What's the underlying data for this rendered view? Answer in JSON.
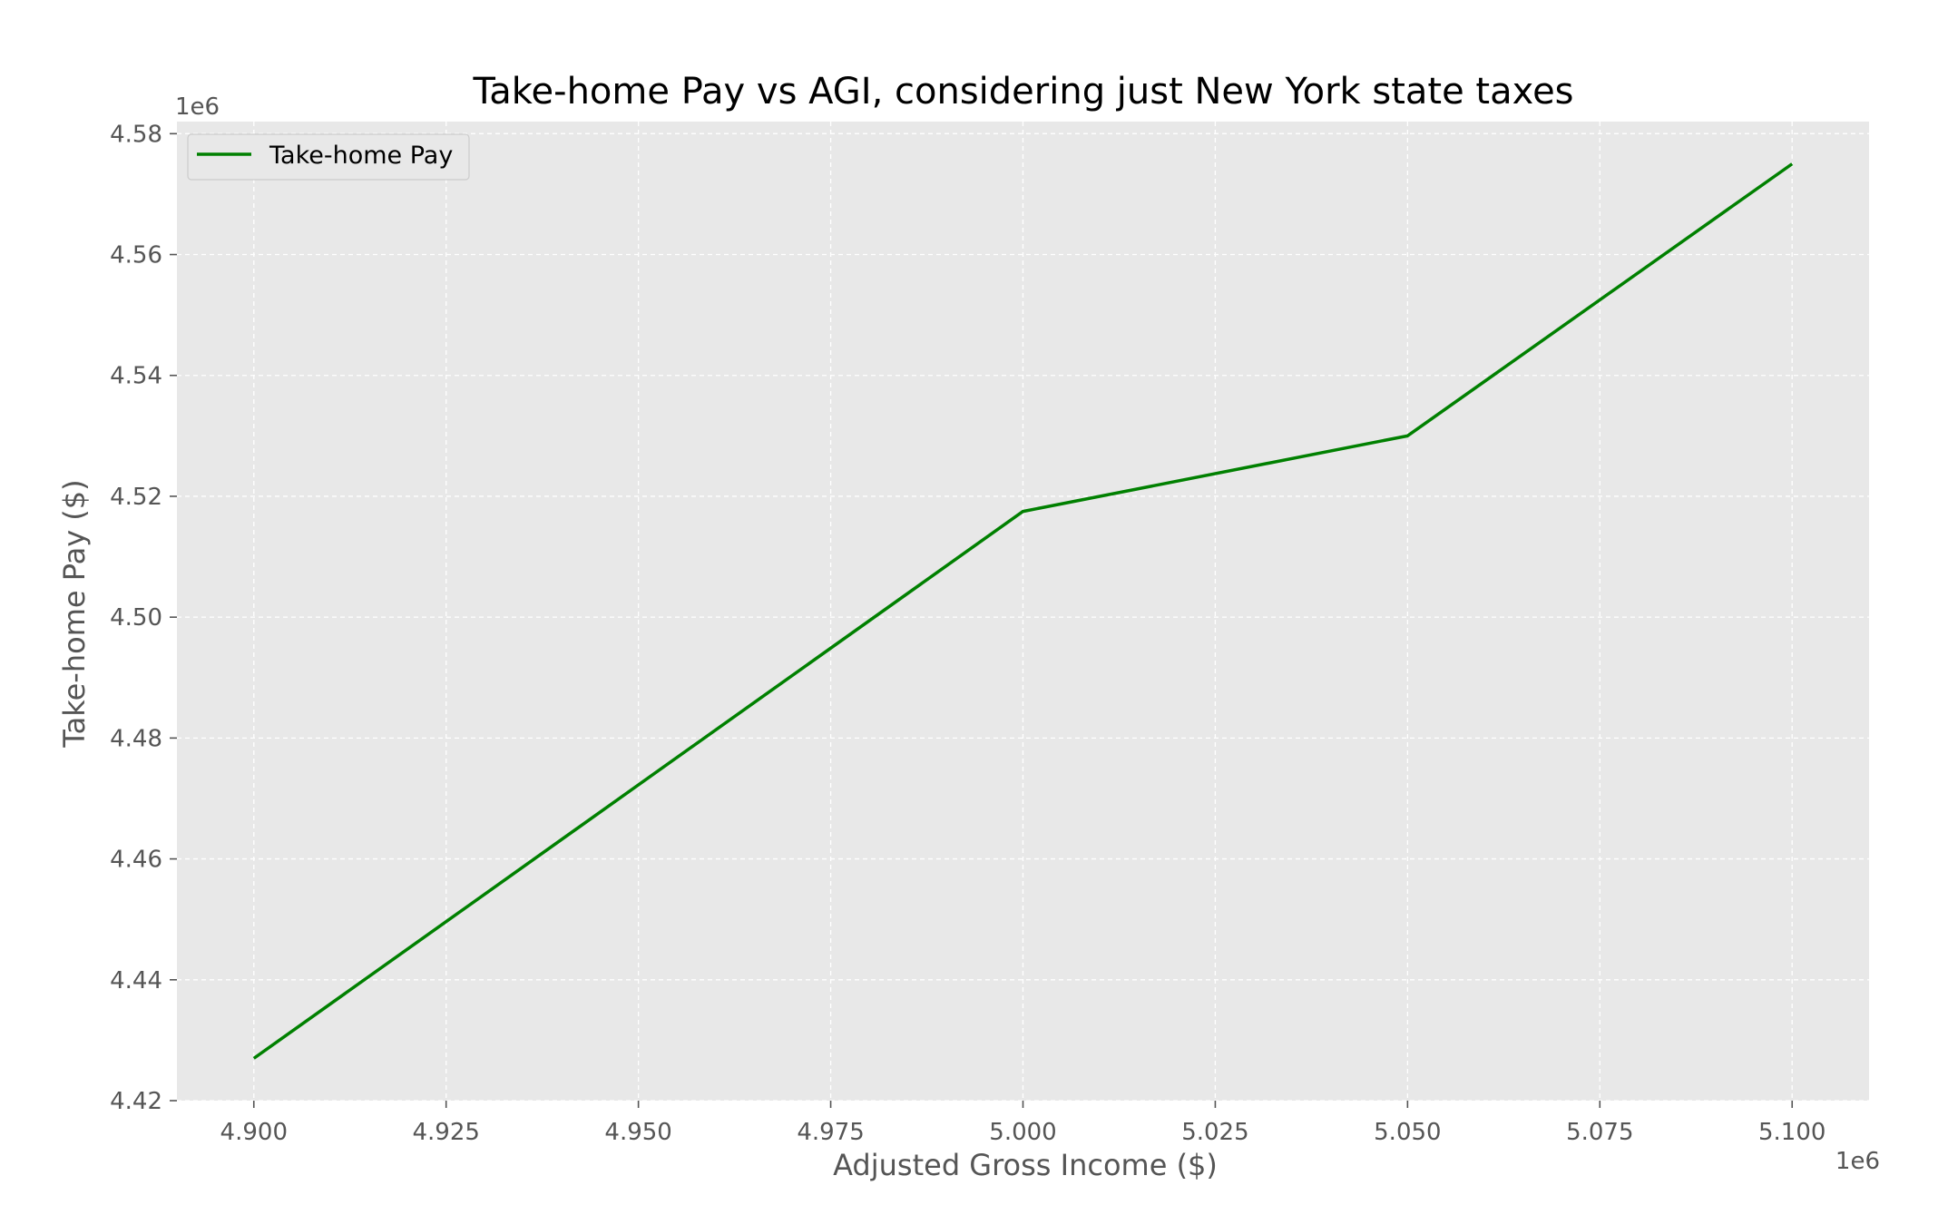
{
  "chart_data": {
    "type": "line",
    "title": "Take-home Pay vs AGI, considering just New York state taxes",
    "xlabel": "Adjusted Gross Income ($)",
    "ylabel": "Take-home Pay ($)",
    "x_offset_label": "1e6",
    "y_offset_label": "1e6",
    "xlim": [
      4.89,
      5.11
    ],
    "ylim": [
      4.42,
      4.582
    ],
    "x_ticks": [
      4.9,
      4.925,
      4.95,
      4.975,
      5.0,
      5.025,
      5.05,
      5.075,
      5.1
    ],
    "x_tick_labels": [
      "4.900",
      "4.925",
      "4.950",
      "4.975",
      "5.000",
      "5.025",
      "5.050",
      "5.075",
      "5.100"
    ],
    "y_ticks": [
      4.42,
      4.44,
      4.46,
      4.48,
      4.5,
      4.52,
      4.54,
      4.56,
      4.58
    ],
    "y_tick_labels": [
      "4.42",
      "4.44",
      "4.46",
      "4.48",
      "4.50",
      "4.52",
      "4.54",
      "4.56",
      "4.58"
    ],
    "grid": true,
    "legend_position": "top-left",
    "background_color": "#e8e8e8",
    "series": [
      {
        "name": "Take-home Pay",
        "color": "#008000",
        "x": [
          4.9,
          5.0,
          5.05,
          5.1
        ],
        "y": [
          4.427,
          4.5175,
          4.53,
          4.575
        ]
      }
    ]
  }
}
